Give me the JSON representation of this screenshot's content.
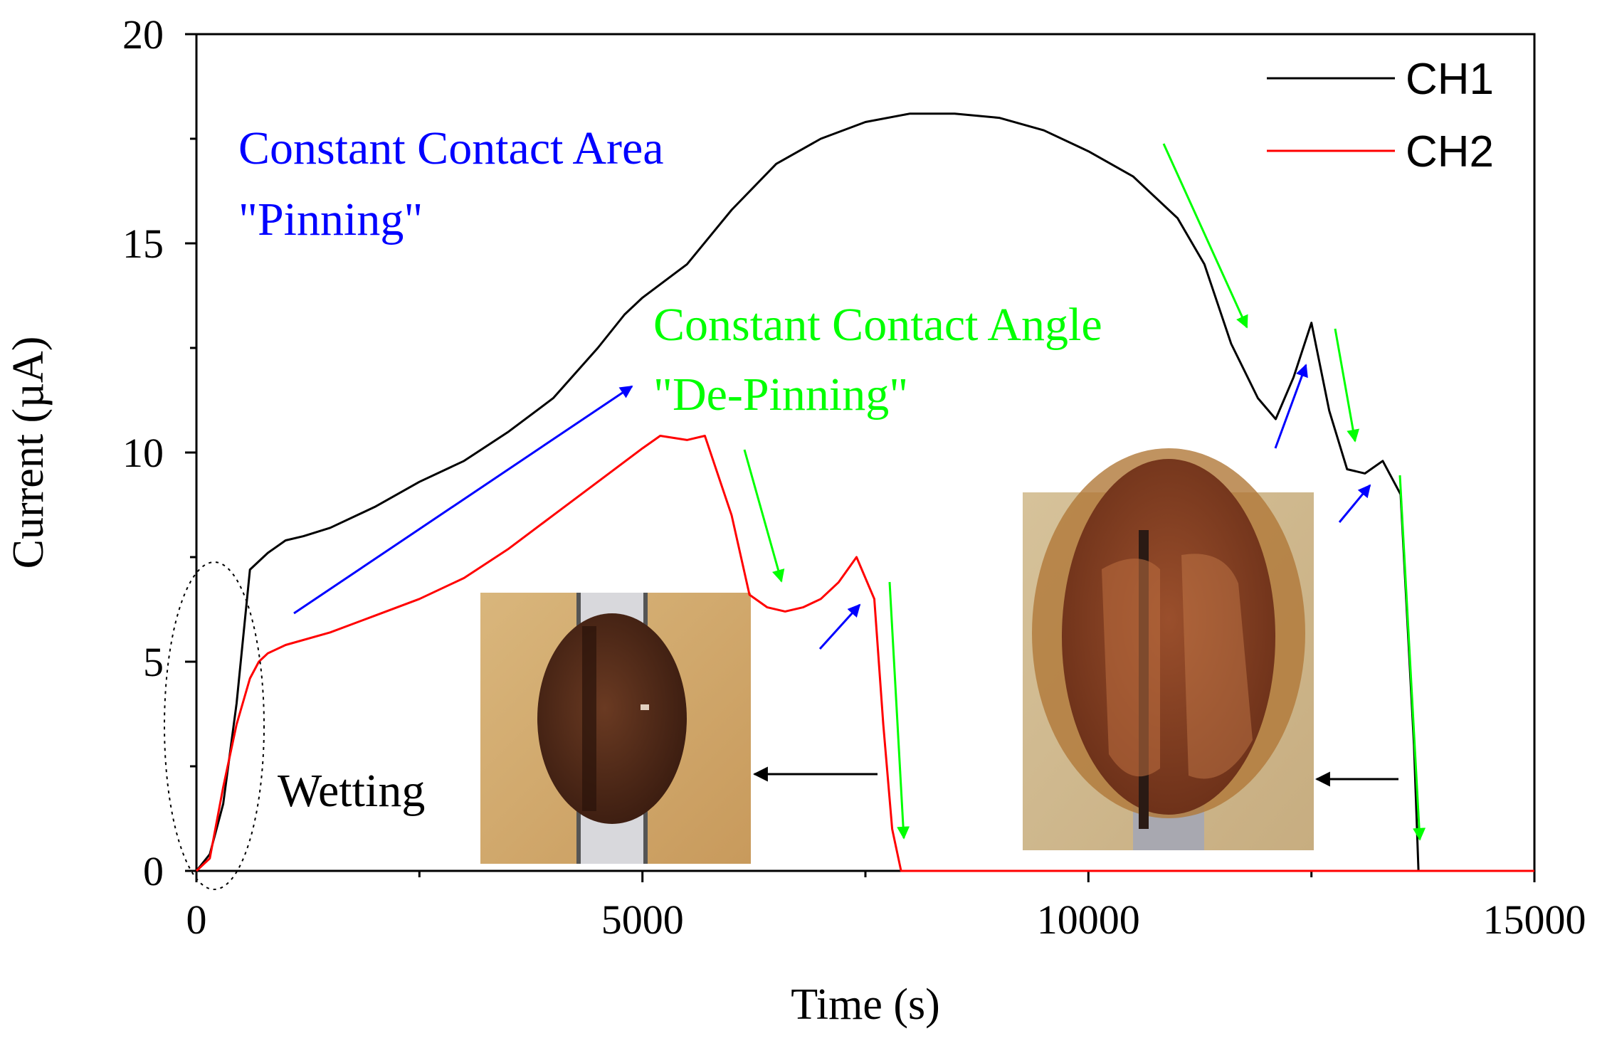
{
  "chart_data": {
    "type": "line",
    "title": "",
    "xlabel": "Time (s)",
    "ylabel": "Current (µA)",
    "xlim": [
      0,
      15000
    ],
    "ylim": [
      0,
      20
    ],
    "xticks": [
      "0",
      "5000",
      "10000",
      "15000"
    ],
    "yticks": [
      "0",
      "5",
      "10",
      "15",
      "20"
    ],
    "grid": false,
    "legend_position": "top-right",
    "series": [
      {
        "name": "CH1",
        "color": "#000000",
        "x": [
          0,
          150,
          300,
          450,
          600,
          700,
          800,
          1000,
          1200,
          1500,
          2000,
          2500,
          3000,
          3500,
          4000,
          4500,
          4800,
          5000,
          5500,
          6000,
          6500,
          7000,
          7500,
          8000,
          8500,
          9000,
          9500,
          10000,
          10500,
          11000,
          11300,
          11600,
          11900,
          12100,
          12300,
          12500,
          12700,
          12900,
          13100,
          13300,
          13500,
          13650,
          13700,
          15000
        ],
        "y": [
          0,
          0.4,
          1.6,
          4.0,
          7.2,
          7.4,
          7.6,
          7.9,
          8.0,
          8.2,
          8.7,
          9.3,
          9.8,
          10.5,
          11.3,
          12.5,
          13.3,
          13.7,
          14.5,
          15.8,
          16.9,
          17.5,
          17.9,
          18.1,
          18.1,
          18.0,
          17.7,
          17.2,
          16.6,
          15.6,
          14.5,
          12.6,
          11.3,
          10.8,
          11.8,
          13.1,
          11.0,
          9.6,
          9.5,
          9.8,
          9.0,
          3.0,
          0,
          0
        ]
      },
      {
        "name": "CH2",
        "color": "#ff0000",
        "x": [
          0,
          150,
          300,
          450,
          600,
          700,
          800,
          1000,
          1500,
          2000,
          2500,
          3000,
          3500,
          4000,
          4500,
          5000,
          5200,
          5500,
          5700,
          6000,
          6200,
          6400,
          6600,
          6800,
          7000,
          7200,
          7400,
          7600,
          7700,
          7800,
          7900,
          15000
        ],
        "y": [
          0,
          0.3,
          2.0,
          3.5,
          4.6,
          5.0,
          5.2,
          5.4,
          5.7,
          6.1,
          6.5,
          7.0,
          7.7,
          8.5,
          9.3,
          10.1,
          10.4,
          10.3,
          10.4,
          8.5,
          6.6,
          6.3,
          6.2,
          6.3,
          6.5,
          6.9,
          7.5,
          6.5,
          3.5,
          1.0,
          0,
          0
        ]
      }
    ],
    "annotations": [
      {
        "text": "Constant Contact Area",
        "color": "#0000ff"
      },
      {
        "text": "\"Pinning\"",
        "color": "#0000ff"
      },
      {
        "text": "Constant Contact Angle",
        "color": "#00ff00"
      },
      {
        "text": "\"De-Pinning\"",
        "color": "#00ff00"
      },
      {
        "text": "Wetting",
        "color": "#000000"
      }
    ]
  }
}
